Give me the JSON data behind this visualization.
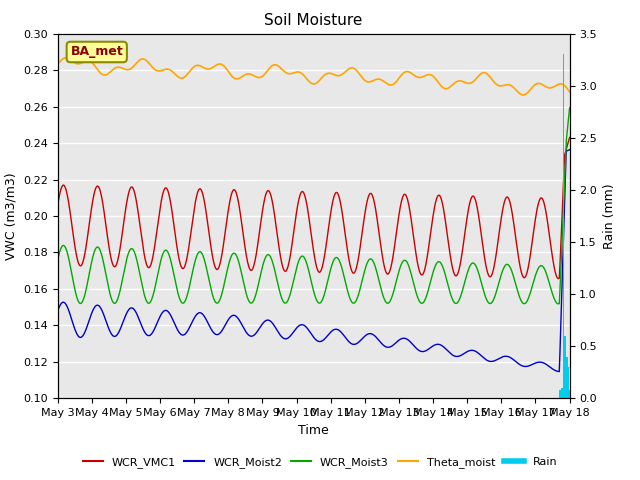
{
  "title": "Soil Moisture",
  "xlabel": "Time",
  "ylabel_left": "VWC (m3/m3)",
  "ylabel_right": "Rain (mm)",
  "ylim_left": [
    0.1,
    0.3
  ],
  "ylim_right": [
    0.0,
    3.5
  ],
  "yticks_left": [
    0.1,
    0.12,
    0.14,
    0.16,
    0.18,
    0.2,
    0.22,
    0.24,
    0.26,
    0.28,
    0.3
  ],
  "yticks_right": [
    0.0,
    0.5,
    1.0,
    1.5,
    2.0,
    2.5,
    3.0,
    3.5
  ],
  "xtick_labels": [
    "May 3",
    "May 4",
    "May 5",
    "May 6",
    "May 7",
    "May 8",
    "May 9",
    "May 10",
    "May 11",
    "May 12",
    "May 13",
    "May 14",
    "May 15",
    "May 16",
    "May 17",
    "May 18"
  ],
  "annotation_text": "BA_met",
  "annotation_color": "#8B0000",
  "annotation_bg": "#FFFF99",
  "annotation_edge": "#8B8B00",
  "colors": {
    "WCR_VMC1": "#CC0000",
    "WCR_Moist2": "#0000CC",
    "WCR_Moist3": "#00AA00",
    "Theta_moist": "#FFA500",
    "Rain": "#00CCEE"
  },
  "background_color": "#E8E8E8",
  "grid_color": "#FFFFFF",
  "n_days": 15,
  "points_per_day": 96,
  "title_fontsize": 11,
  "axis_fontsize": 9,
  "tick_fontsize": 8
}
